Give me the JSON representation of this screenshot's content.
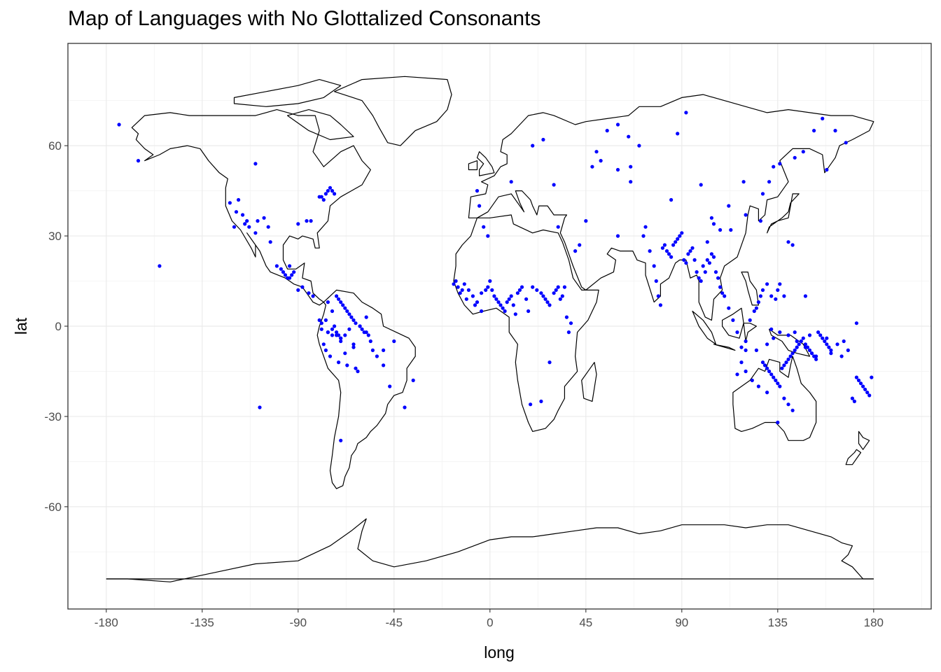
{
  "chart_data": {
    "type": "scatter",
    "title": "Map of Languages with No Glottalized Consonants",
    "xlabel": "long",
    "ylabel": "lat",
    "xlim": [
      -198,
      207
    ],
    "ylim": [
      -94,
      94
    ],
    "x_ticks": [
      -180,
      -135,
      -90,
      -45,
      0,
      45,
      90,
      135,
      180
    ],
    "y_ticks": [
      -60,
      -30,
      0,
      30,
      60
    ],
    "x_tick_labels": [
      "-180",
      "-135",
      "-90",
      "-45",
      "0",
      "45",
      "90",
      "135",
      "180"
    ],
    "y_tick_labels": [
      "-60",
      "-30",
      "0",
      "30",
      "60"
    ],
    "grid": true,
    "point_color": "#0000ff",
    "outline_color": "#000000",
    "series": [
      {
        "x": [
          -174,
          -165,
          -110,
          -118,
          -116,
          -114,
          -113,
          -110,
          -106,
          -104,
          -103,
          -100,
          -98,
          -97,
          -96,
          -95,
          -94,
          -93,
          -92,
          -94,
          -90,
          -86,
          -84,
          -80,
          -79,
          -78,
          -77,
          -76,
          -75,
          -74,
          -73,
          -72,
          -71,
          -70,
          -69,
          -68,
          -67,
          -66,
          -65,
          -64,
          -63,
          -61,
          -60,
          -58,
          -57,
          -56,
          -55,
          -53,
          -50,
          -47,
          -40,
          -36,
          -70,
          -108,
          -155,
          -122,
          -119,
          -115,
          -109,
          -90,
          -88,
          -85,
          -83,
          -76,
          -74,
          -120,
          -72,
          -67,
          -50,
          -45,
          -63,
          -70,
          -61,
          -58,
          -77,
          -79,
          -73,
          -76,
          -74,
          -70,
          -64,
          -68,
          -71,
          -75,
          -77,
          -78,
          -74,
          -72,
          -66,
          -62,
          -70,
          -71,
          -76,
          -79,
          -80,
          -59,
          -68,
          -64
        ],
        "y": [
          67,
          55,
          54,
          42,
          37,
          35,
          33,
          31,
          36,
          33,
          28,
          20,
          19,
          18,
          17,
          16,
          16,
          17,
          18,
          20,
          34,
          35,
          35,
          43,
          43,
          42,
          44,
          45,
          46,
          45,
          44,
          10,
          9,
          8,
          7,
          6,
          5,
          4,
          3,
          2,
          1,
          0,
          -1,
          -2,
          -3,
          -5,
          -8,
          -10,
          -13,
          -20,
          -27,
          -18,
          -38,
          -27,
          20,
          41,
          38,
          34,
          35,
          12,
          13,
          11,
          10,
          8,
          5,
          33,
          -3,
          -13,
          -8,
          -5,
          -14,
          -5,
          0,
          3,
          2,
          1,
          0,
          -2,
          -1,
          -4,
          -6,
          -9,
          -12,
          -10,
          -8,
          -6,
          -3,
          -2,
          -1,
          -15,
          -4,
          -3,
          -2,
          -1,
          2,
          -2,
          -3,
          -7
        ]
      },
      {
        "x": [
          -12,
          -10,
          -8,
          -6,
          -4,
          -2,
          -1,
          0,
          1,
          2,
          3,
          4,
          5,
          6,
          7,
          8,
          9,
          10,
          11,
          12,
          13,
          14,
          15,
          17,
          18,
          20,
          22,
          24,
          25,
          26,
          27,
          28,
          30,
          31,
          32,
          33,
          34,
          35,
          36,
          37,
          38,
          40,
          42,
          45,
          48,
          50,
          -5,
          -6,
          -15,
          -17,
          -16,
          -13,
          -3,
          -1,
          10,
          20,
          25,
          30,
          32,
          28,
          24,
          19,
          -4,
          -14,
          -7,
          -11
        ],
        "y": [
          14,
          12,
          10,
          8,
          11,
          12,
          13,
          15,
          12,
          10,
          9,
          8,
          7,
          6,
          5,
          8,
          9,
          10,
          7,
          4,
          11,
          12,
          13,
          9,
          5,
          13,
          12,
          11,
          10,
          9,
          8,
          7,
          11,
          12,
          13,
          9,
          10,
          13,
          3,
          -2,
          1,
          25,
          27,
          35,
          53,
          58,
          40,
          45,
          13,
          14,
          15,
          12,
          33,
          30,
          48,
          60,
          62,
          47,
          33,
          -12,
          -25,
          -26,
          5,
          11,
          7,
          9
        ]
      },
      {
        "x": [
          55,
          60,
          65,
          70,
          72,
          75,
          77,
          78,
          79,
          80,
          81,
          82,
          83,
          84,
          85,
          86,
          87,
          88,
          89,
          90,
          91,
          92,
          93,
          94,
          95,
          96,
          97,
          98,
          99,
          100,
          101,
          102,
          103,
          104,
          105,
          106,
          107,
          108,
          109,
          110,
          112,
          114,
          116,
          118,
          120,
          122,
          124,
          125,
          126,
          127,
          128,
          130,
          132,
          134,
          135,
          136,
          138,
          140,
          60,
          66,
          73,
          88,
          92,
          99,
          105,
          112,
          120,
          127,
          133,
          142,
          148,
          152,
          156,
          158,
          167,
          162,
          147,
          143,
          136,
          131,
          128,
          119,
          113,
          104,
          102,
          108,
          60,
          52,
          66,
          85
        ],
        "y": [
          65,
          67,
          63,
          60,
          30,
          25,
          20,
          15,
          10,
          7,
          26,
          27,
          25,
          24,
          23,
          27,
          28,
          29,
          30,
          31,
          22,
          21,
          24,
          25,
          26,
          22,
          18,
          16,
          15,
          20,
          18,
          22,
          21,
          24,
          23,
          18,
          16,
          13,
          11,
          10,
          6,
          2,
          -2,
          -7,
          -5,
          2,
          5,
          6,
          8,
          10,
          12,
          14,
          10,
          9,
          12,
          14,
          10,
          28,
          52,
          48,
          33,
          64,
          71,
          47,
          34,
          40,
          37,
          35,
          53,
          27,
          10,
          65,
          69,
          52,
          61,
          65,
          58,
          56,
          54,
          48,
          44,
          48,
          32,
          36,
          28,
          32,
          30,
          55,
          53,
          42
        ]
      },
      {
        "x": [
          128,
          129,
          130,
          131,
          132,
          133,
          134,
          135,
          136,
          137,
          138,
          139,
          140,
          141,
          142,
          143,
          144,
          145,
          146,
          147,
          148,
          149,
          150,
          151,
          152,
          153,
          154,
          155,
          156,
          157,
          158,
          159,
          160,
          138,
          140,
          142,
          135,
          130,
          126,
          123,
          120,
          116,
          118,
          125,
          130,
          133,
          136,
          140,
          144,
          148,
          151,
          153,
          170,
          171,
          172,
          173,
          174,
          175,
          176,
          177,
          178,
          179,
          165,
          160,
          168,
          163,
          166,
          132,
          143,
          120,
          150,
          158,
          172
        ],
        "y": [
          -12,
          -13,
          -14,
          -15,
          -16,
          -17,
          -18,
          -19,
          -20,
          -14,
          -13,
          -12,
          -11,
          -10,
          -9,
          -8,
          -7,
          -6,
          -5,
          -4,
          -6,
          -7,
          -8,
          -9,
          -10,
          -11,
          -2,
          -3,
          -4,
          -5,
          -6,
          -7,
          -8,
          -24,
          -26,
          -28,
          -32,
          -22,
          -20,
          -18,
          -15,
          -16,
          -12,
          -8,
          -6,
          -4,
          -2,
          -3,
          -5,
          -7,
          -9,
          -10,
          -24,
          -25,
          -17,
          -18,
          -19,
          -20,
          -21,
          -22,
          -23,
          -17,
          -10,
          -9,
          -8,
          -6,
          -5,
          -1,
          -2,
          -8,
          -3,
          -4,
          1
        ]
      }
    ]
  }
}
